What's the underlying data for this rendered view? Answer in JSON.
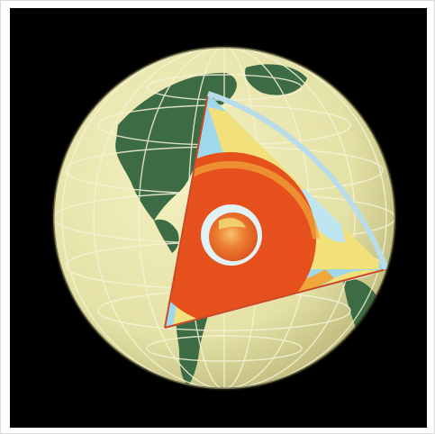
{
  "image": {
    "subject": "earth-interior-cutaway",
    "colors": {
      "background": "#000000",
      "ocean": "#e6e4ae",
      "land": "#3c6b44",
      "gridlines": "#f6f3d6",
      "hot": "#e6501c",
      "warm": "#f0a83a",
      "yellow": "#f2e07a",
      "cool": "#9fd8ea",
      "core_rim": "#e2f1f4"
    }
  }
}
